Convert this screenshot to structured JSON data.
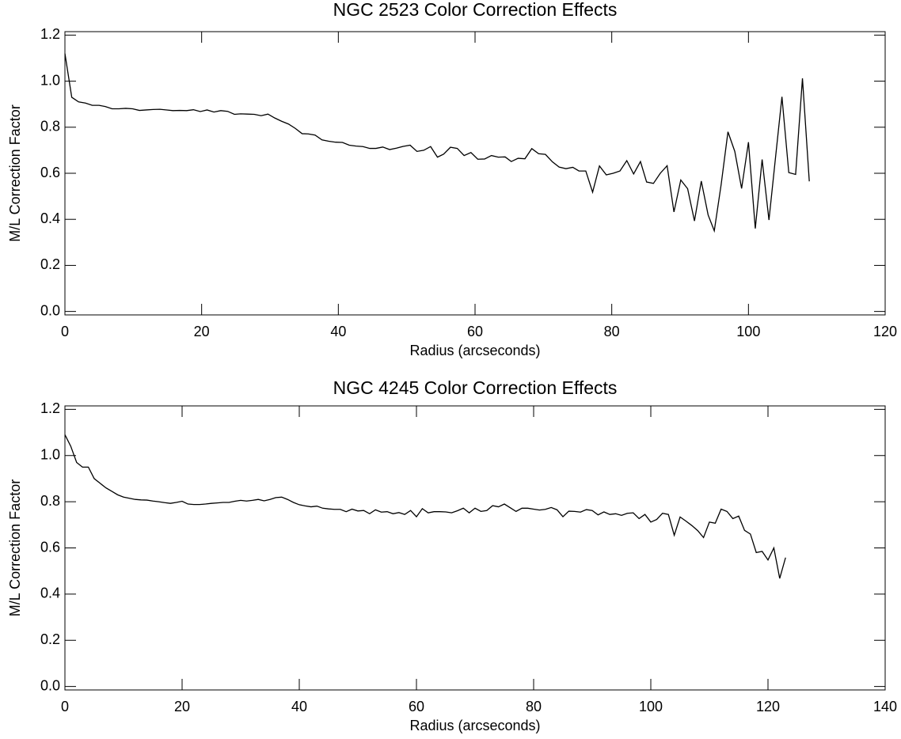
{
  "chart_data": [
    {
      "type": "line",
      "title": "NGC 2523 Color Correction Effects",
      "x_label": "Radius (arcseconds)",
      "y_label": "M/L Correction Factor",
      "xlim": [
        0,
        120
      ],
      "xticks": [
        0,
        20,
        40,
        60,
        80,
        100,
        120
      ],
      "ylim": [
        -0.015,
        1.215
      ],
      "yticks": [
        {
          "value": 0,
          "label": "0.0"
        },
        0.2,
        0.4,
        0.6,
        0.8,
        {
          "value": 1,
          "label": "1.0"
        },
        1.2
      ],
      "series": [
        {
          "color": "#000000",
          "x": [
            0,
            1.0,
            2.0,
            3.0,
            4.0,
            5.0,
            5.9,
            6.9,
            7.9,
            8.9,
            9.9,
            10.9,
            11.9,
            12.9,
            13.9,
            14.9,
            15.8,
            16.8,
            17.8,
            18.8,
            19.8,
            20.8,
            21.8,
            22.8,
            23.8,
            24.8,
            25.7,
            26.7,
            27.7,
            28.7,
            29.7,
            30.7,
            31.7,
            32.7,
            33.7,
            34.7,
            35.6,
            36.6,
            37.6,
            38.6,
            39.6,
            40.6,
            41.6,
            42.6,
            43.6,
            44.6,
            45.5,
            46.5,
            47.5,
            48.5,
            49.5,
            50.5,
            51.5,
            52.5,
            53.5,
            54.5,
            55.4,
            56.4,
            57.4,
            58.4,
            59.4,
            60.4,
            61.4,
            62.4,
            63.4,
            64.4,
            65.3,
            66.3,
            67.3,
            68.3,
            69.3,
            70.3,
            71.3,
            72.3,
            73.3,
            74.3,
            75.2,
            76.2,
            77.2,
            78.2,
            79.2,
            80.2,
            81.2,
            82.2,
            83.2,
            84.2,
            85.1,
            86.1,
            87.1,
            88.1,
            89.1,
            90.1,
            91.1,
            92.1,
            93.1,
            94.1,
            95.0,
            96.0,
            97.0,
            98.0,
            99.0,
            100.0,
            101.0,
            102.0,
            103.0,
            104.0,
            104.9,
            105.9,
            106.9,
            107.9,
            108.9
          ],
          "values": [
            1.12,
            0.93,
            0.91,
            0.905,
            0.895,
            0.895,
            0.89,
            0.88,
            0.88,
            0.882,
            0.88,
            0.873,
            0.875,
            0.877,
            0.878,
            0.875,
            0.872,
            0.873,
            0.872,
            0.876,
            0.868,
            0.875,
            0.866,
            0.872,
            0.869,
            0.856,
            0.858,
            0.857,
            0.856,
            0.85,
            0.857,
            0.84,
            0.826,
            0.814,
            0.795,
            0.772,
            0.771,
            0.766,
            0.745,
            0.739,
            0.735,
            0.734,
            0.722,
            0.718,
            0.716,
            0.708,
            0.708,
            0.714,
            0.703,
            0.709,
            0.717,
            0.722,
            0.695,
            0.7,
            0.716,
            0.67,
            0.683,
            0.713,
            0.708,
            0.677,
            0.69,
            0.661,
            0.662,
            0.677,
            0.67,
            0.671,
            0.651,
            0.665,
            0.663,
            0.707,
            0.685,
            0.682,
            0.65,
            0.627,
            0.62,
            0.626,
            0.61,
            0.61,
            0.518,
            0.632,
            0.593,
            0.6,
            0.61,
            0.655,
            0.597,
            0.651,
            0.562,
            0.556,
            0.6,
            0.633,
            0.432,
            0.571,
            0.533,
            0.393,
            0.566,
            0.419,
            0.35,
            0.55,
            0.78,
            0.695,
            0.534,
            0.735,
            0.36,
            0.66,
            0.397,
            0.68,
            0.932,
            0.603,
            0.595,
            1.012,
            0.565
          ]
        }
      ]
    },
    {
      "type": "line",
      "title": "NGC 4245 Color Correction Effects",
      "x_label": "Radius (arcseconds)",
      "y_label": "M/L Correction Factor",
      "xlim": [
        0,
        140
      ],
      "xticks": [
        0,
        20,
        40,
        60,
        80,
        100,
        120,
        140
      ],
      "ylim": [
        -0.015,
        1.215
      ],
      "yticks": [
        {
          "value": 0,
          "label": "0.0"
        },
        0.2,
        0.4,
        0.6,
        0.8,
        {
          "value": 1,
          "label": "1.0"
        },
        1.2
      ],
      "series": [
        {
          "color": "#000000",
          "x": [
            0,
            1,
            2,
            3,
            4,
            5,
            6,
            7,
            8,
            9,
            10,
            11,
            12,
            13,
            14,
            15,
            16,
            17,
            18,
            19,
            20,
            21,
            22,
            23,
            24,
            25,
            26,
            27,
            28,
            29,
            30,
            31,
            32,
            33,
            34,
            35,
            36,
            37,
            38,
            39,
            40,
            41,
            42,
            43,
            44,
            45,
            46,
            47,
            48,
            49,
            50,
            51,
            52,
            53,
            54,
            55,
            56,
            57,
            58,
            59,
            60,
            61,
            62,
            63,
            64,
            65,
            66,
            67,
            68,
            69,
            70,
            71,
            72,
            73,
            74,
            75,
            76,
            77,
            78,
            79,
            80,
            81,
            82,
            83,
            84,
            85,
            86,
            87,
            88,
            89,
            90,
            91,
            92,
            93,
            94,
            95,
            96,
            97,
            98,
            99,
            100,
            101,
            102,
            103,
            104,
            105,
            106,
            107,
            108,
            109,
            110,
            111,
            112,
            113,
            114,
            115,
            116,
            117,
            118,
            119,
            120,
            121,
            122,
            123
          ],
          "values": [
            1.09,
            1.04,
            0.97,
            0.95,
            0.95,
            0.9,
            0.88,
            0.86,
            0.845,
            0.83,
            0.82,
            0.815,
            0.81,
            0.808,
            0.807,
            0.803,
            0.8,
            0.796,
            0.793,
            0.797,
            0.802,
            0.79,
            0.788,
            0.788,
            0.79,
            0.793,
            0.795,
            0.797,
            0.797,
            0.802,
            0.806,
            0.803,
            0.806,
            0.81,
            0.804,
            0.81,
            0.818,
            0.82,
            0.81,
            0.797,
            0.787,
            0.782,
            0.778,
            0.781,
            0.772,
            0.769,
            0.767,
            0.767,
            0.757,
            0.768,
            0.76,
            0.762,
            0.748,
            0.765,
            0.755,
            0.757,
            0.748,
            0.753,
            0.745,
            0.762,
            0.735,
            0.77,
            0.752,
            0.757,
            0.757,
            0.756,
            0.752,
            0.761,
            0.772,
            0.752,
            0.772,
            0.758,
            0.762,
            0.783,
            0.778,
            0.79,
            0.774,
            0.758,
            0.772,
            0.772,
            0.768,
            0.764,
            0.767,
            0.775,
            0.765,
            0.735,
            0.759,
            0.758,
            0.755,
            0.766,
            0.762,
            0.743,
            0.756,
            0.745,
            0.748,
            0.741,
            0.75,
            0.752,
            0.727,
            0.745,
            0.712,
            0.723,
            0.75,
            0.745,
            0.655,
            0.734,
            0.716,
            0.697,
            0.675,
            0.645,
            0.712,
            0.707,
            0.768,
            0.758,
            0.727,
            0.738,
            0.676,
            0.66,
            0.58,
            0.585,
            0.548,
            0.6,
            0.468,
            0.558
          ]
        }
      ]
    }
  ]
}
